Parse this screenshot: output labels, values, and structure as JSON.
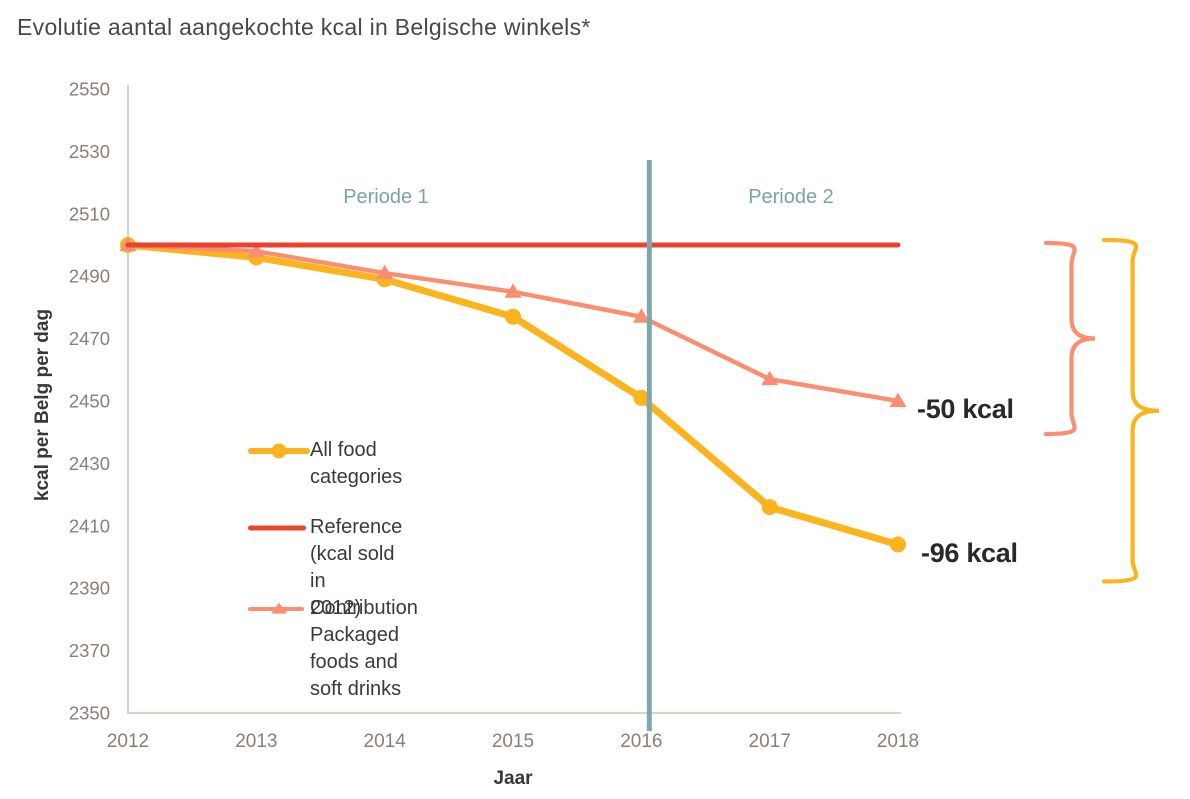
{
  "title": "Evolutie aantal aangekochte kcal in Belgische winkels*",
  "chart_data": {
    "type": "line",
    "title": "Evolutie aantal aangekochte kcal in Belgische winkels*",
    "x": [
      2012,
      2013,
      2014,
      2015,
      2016,
      2017,
      2018
    ],
    "xlabel": "Jaar",
    "ylabel": "kcal per Belg per dag",
    "ylim": [
      2350,
      2550
    ],
    "ytick_step": 20,
    "grid": false,
    "legend_position": "inside-left",
    "series": [
      {
        "name": "All food categories",
        "color": "#fbb31e",
        "marker": "circle",
        "line_width": 7,
        "values": [
          2500,
          2496,
          2489,
          2477,
          2451,
          2416,
          2404
        ]
      },
      {
        "name": "Reference (kcal sold in 2012)",
        "color": "#e8432f",
        "marker": "none",
        "line_width": 5,
        "values": [
          2500,
          2500,
          2500,
          2500,
          2500,
          2500,
          2500
        ]
      },
      {
        "name": "Contribution Packaged foods and soft drinks",
        "color": "#f98f70",
        "marker": "triangle",
        "line_width": 4.5,
        "values": [
          2500,
          2498,
          2491,
          2485,
          2477,
          2457,
          2450
        ]
      }
    ],
    "divider": {
      "x": 2016,
      "color": "#7ea7af"
    },
    "period_labels": [
      "Periode 1",
      "Periode 2"
    ],
    "annotations": [
      {
        "text": "-50 kcal",
        "at_value": 2450,
        "from_value": 2500,
        "brace_color": "#f98f70"
      },
      {
        "text": "-96 kcal",
        "at_value": 2404,
        "from_value": 2500,
        "brace_color": "#fbb31e"
      }
    ]
  },
  "legend": {
    "items": [
      {
        "label": "All food categories"
      },
      {
        "label": "Reference (kcal sold in\n2012)"
      },
      {
        "label": "Contribution\nPackaged foods and\nsoft drinks"
      }
    ]
  },
  "colors": {
    "all_food": "#fbb31e",
    "reference": "#e8432f",
    "contribution": "#f98f70",
    "divider": "#7ea7af",
    "period_label": "#79a3ac",
    "tick_label": "#8a7f75",
    "axis_line": "#d8d2c9",
    "annotation_text": "#2b2825"
  }
}
